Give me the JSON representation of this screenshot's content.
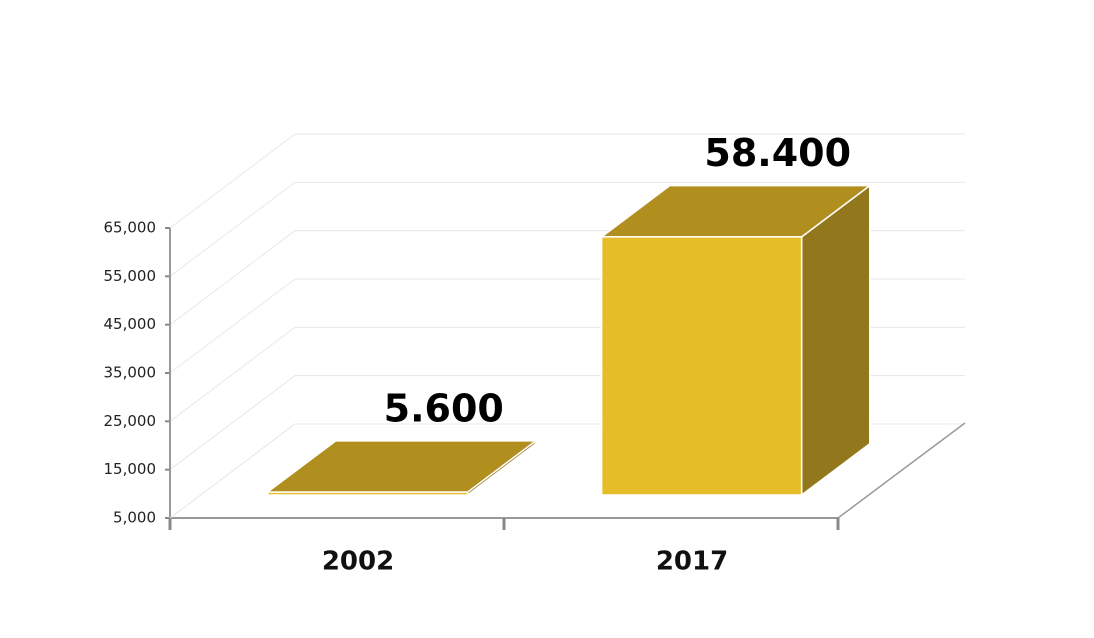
{
  "chart_data": {
    "type": "bar3d",
    "categories": [
      "2002",
      "2017"
    ],
    "values": [
      5600,
      58400
    ],
    "value_labels": [
      "5.600",
      "58.400"
    ],
    "color": "#e5bd29",
    "ylim": [
      5000,
      65000
    ],
    "yticks": [
      {
        "value": 5000,
        "label": "5,000"
      },
      {
        "value": 15000,
        "label": "15,000"
      },
      {
        "value": 25000,
        "label": "25,000"
      },
      {
        "value": 35000,
        "label": "35,000"
      },
      {
        "value": 45000,
        "label": "45,000"
      },
      {
        "value": 55000,
        "label": "55,000"
      },
      {
        "value": 65000,
        "label": "65,000"
      }
    ],
    "grid": true
  }
}
